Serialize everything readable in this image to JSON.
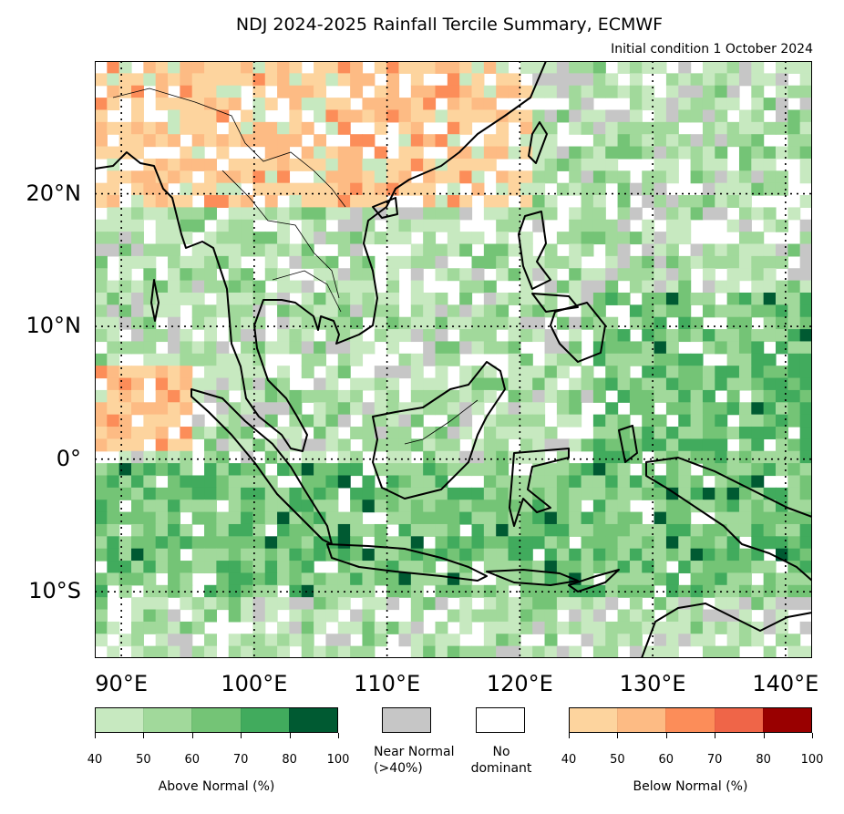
{
  "title": "NDJ 2024-2025 Rainfall Tercile Summary, ECMWF",
  "initial_condition": "Initial condition 1 October 2024",
  "map": {
    "lon_range": [
      88,
      142
    ],
    "lat_range": [
      -15,
      30
    ],
    "lat_labels": [
      {
        "value": 20,
        "text": "20°N"
      },
      {
        "value": 10,
        "text": "10°N"
      },
      {
        "value": 0,
        "text": "0°"
      },
      {
        "value": -10,
        "text": "10°S"
      }
    ],
    "lon_labels": [
      {
        "value": 90,
        "text": "90°E"
      },
      {
        "value": 100,
        "text": "100°E"
      },
      {
        "value": 110,
        "text": "110°E"
      },
      {
        "value": 120,
        "text": "120°E"
      },
      {
        "value": 130,
        "text": "130°E"
      },
      {
        "value": 140,
        "text": "140°E"
      }
    ],
    "land_outline_color": "#000000",
    "gridline_style": "dotted"
  },
  "legend": {
    "above_normal": {
      "label": "Above Normal (%)",
      "ticks": [
        "40",
        "50",
        "60",
        "70",
        "80",
        "100"
      ],
      "colors": [
        "#c7e9c0",
        "#a1d99b",
        "#74c476",
        "#41ab5d",
        "#005a32"
      ]
    },
    "near_normal": {
      "label": "Near Normal\n(>40%)",
      "color": "#c6c6c6"
    },
    "no_dominant": {
      "label": "No\ndominant",
      "color": "#ffffff"
    },
    "below_normal": {
      "label": "Below Normal (%)",
      "ticks": [
        "40",
        "50",
        "60",
        "70",
        "80",
        "100"
      ],
      "colors": [
        "#fdd49e",
        "#fdbb84",
        "#fc8d59",
        "#ef6548",
        "#990000"
      ]
    }
  }
}
